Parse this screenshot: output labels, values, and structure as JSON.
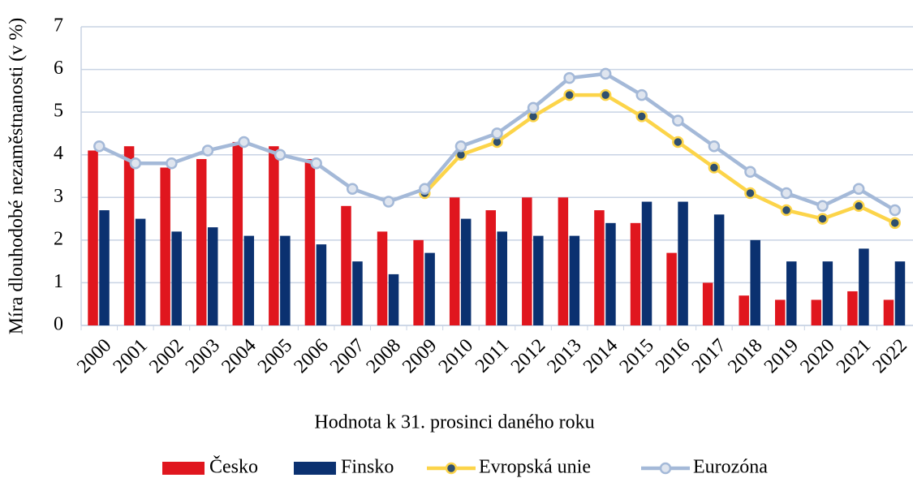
{
  "chart_data": {
    "type": "bar_line",
    "x_label": "Hodnota k 31. prosinci daného roku",
    "y_label": "Míra dlouhodobé nezaměstnanosti (v %)",
    "categories": [
      "2000",
      "2001",
      "2002",
      "2003",
      "2004",
      "2005",
      "2006",
      "2007",
      "2008",
      "2009",
      "2010",
      "2011",
      "2012",
      "2013",
      "2014",
      "2015",
      "2016",
      "2017",
      "2018",
      "2019",
      "2020",
      "2021",
      "2022"
    ],
    "ylim": [
      0,
      7
    ],
    "yticks": [
      0,
      1,
      2,
      3,
      4,
      5,
      6,
      7
    ],
    "grid": true,
    "legend": "bottom",
    "series": [
      {
        "name": "Česko",
        "kind": "bar",
        "color": "#e0161e",
        "values": [
          4.1,
          4.2,
          3.7,
          3.9,
          4.3,
          4.2,
          3.9,
          2.8,
          2.2,
          2.0,
          3.0,
          2.7,
          3.0,
          3.0,
          2.7,
          2.4,
          1.7,
          1.0,
          0.7,
          0.6,
          0.6,
          0.8,
          0.6
        ]
      },
      {
        "name": "Finsko",
        "kind": "bar",
        "color": "#0b3170",
        "values": [
          2.7,
          2.5,
          2.2,
          2.3,
          2.1,
          2.1,
          1.9,
          1.5,
          1.2,
          1.7,
          2.5,
          2.2,
          2.1,
          2.1,
          2.4,
          2.9,
          2.9,
          2.6,
          2.0,
          1.5,
          1.5,
          1.8,
          1.5
        ]
      },
      {
        "name": "Evropská unie",
        "kind": "line",
        "color": "#fcd449",
        "marker_color": "#2f4f6f",
        "values": [
          null,
          null,
          null,
          null,
          null,
          null,
          null,
          null,
          null,
          3.1,
          4.0,
          4.3,
          4.9,
          5.4,
          5.4,
          4.9,
          4.3,
          3.7,
          3.1,
          2.7,
          2.5,
          2.8,
          2.4
        ]
      },
      {
        "name": "Eurozóna",
        "kind": "line",
        "color": "#a4b9d8",
        "marker_color": "#dfe5ef",
        "values": [
          4.2,
          3.8,
          3.8,
          4.1,
          4.3,
          4.0,
          3.8,
          3.2,
          2.9,
          3.2,
          4.2,
          4.5,
          5.1,
          5.8,
          5.9,
          5.4,
          4.8,
          4.2,
          3.6,
          3.1,
          2.8,
          3.2,
          2.7
        ]
      }
    ]
  }
}
